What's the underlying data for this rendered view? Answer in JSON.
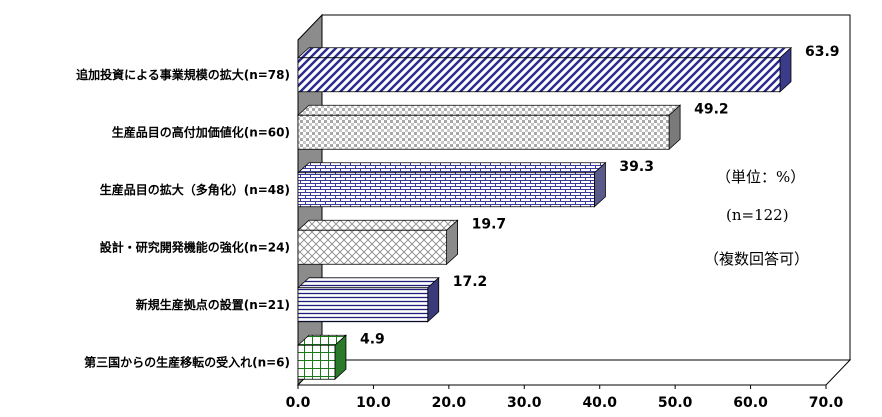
{
  "chart_data": {
    "type": "bar",
    "orientation": "horizontal",
    "categories": [
      "追加投資による事業規模の拡大(n=78)",
      "生産品目の高付加価値化(n=60)",
      "生産品目の拡大（多角化）(n=48)",
      "設計・研究開発機能の強化(n=24)",
      "新規生産拠点の設置(n=21)",
      "第三国からの生産移転の受入れ(n=6)"
    ],
    "values": [
      63.9,
      49.2,
      39.3,
      19.7,
      17.2,
      4.9
    ],
    "value_labels": [
      "63.9",
      "49.2",
      "39.3",
      "19.7",
      "17.2",
      "4.9"
    ],
    "xlim": [
      0,
      70
    ],
    "xticks": [
      "0.0",
      "10.0",
      "20.0",
      "30.0",
      "40.0",
      "50.0",
      "60.0",
      "70.0"
    ],
    "grid": false,
    "style": "3d",
    "bar_colors": [
      "#2a2a8c",
      "#9a9a9a",
      "#3a3a9a",
      "#8a8a8a",
      "#20207a",
      "#1a7a1a"
    ],
    "annotations": [
      "（単位：%）",
      "(n=122)",
      "（複数回答可）"
    ]
  }
}
